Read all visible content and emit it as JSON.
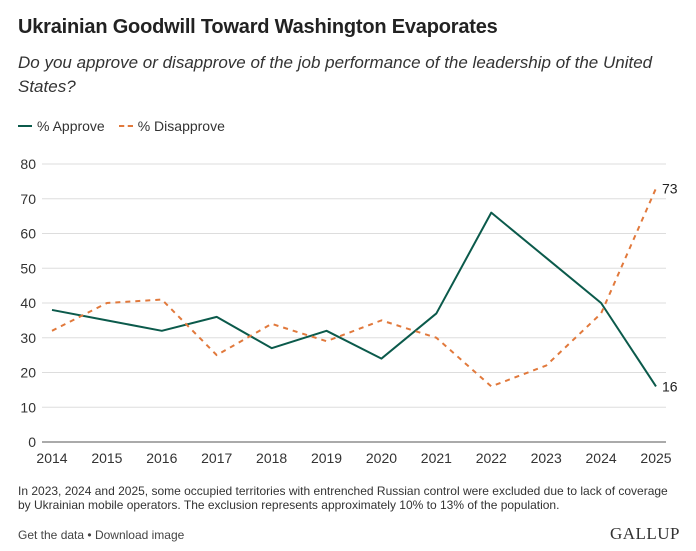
{
  "title": "Ukrainian Goodwill Toward Washington Evaporates",
  "subtitle": "Do you approve or disapprove of the job performance of the leadership of the United States?",
  "legend": {
    "approve": "% Approve",
    "disapprove": "% Disapprove"
  },
  "footnote": "In 2023, 2024 and 2025, some occupied territories with entrenched Russian control were excluded due to lack of coverage by Ukrainian mobile operators. The exclusion represents approximately 10% to 13% of the population.",
  "footer": {
    "get_data": "Get the data",
    "separator": "•",
    "download": "Download image"
  },
  "logo": "GALLUP",
  "colors": {
    "approve": "#0b5a4b",
    "disapprove": "#e1793c",
    "grid": "#dddddd"
  },
  "chart_data": {
    "type": "line",
    "x": [
      2014,
      2015,
      2016,
      2017,
      2018,
      2019,
      2020,
      2021,
      2022,
      2023,
      2024,
      2025
    ],
    "series": [
      {
        "name": "% Approve",
        "values": [
          38,
          35,
          32,
          36,
          27,
          32,
          24,
          37,
          66,
          53,
          40,
          16
        ],
        "style": "solid"
      },
      {
        "name": "% Disapprove",
        "values": [
          32,
          40,
          41,
          25,
          34,
          29,
          35,
          30,
          16,
          22,
          37,
          73
        ],
        "style": "dashed"
      }
    ],
    "end_labels": [
      "16",
      "73"
    ],
    "ylim": [
      0,
      80
    ],
    "yticks": [
      0,
      10,
      20,
      30,
      40,
      50,
      60,
      70,
      80
    ],
    "grid": true,
    "legend_position": "top-left"
  }
}
